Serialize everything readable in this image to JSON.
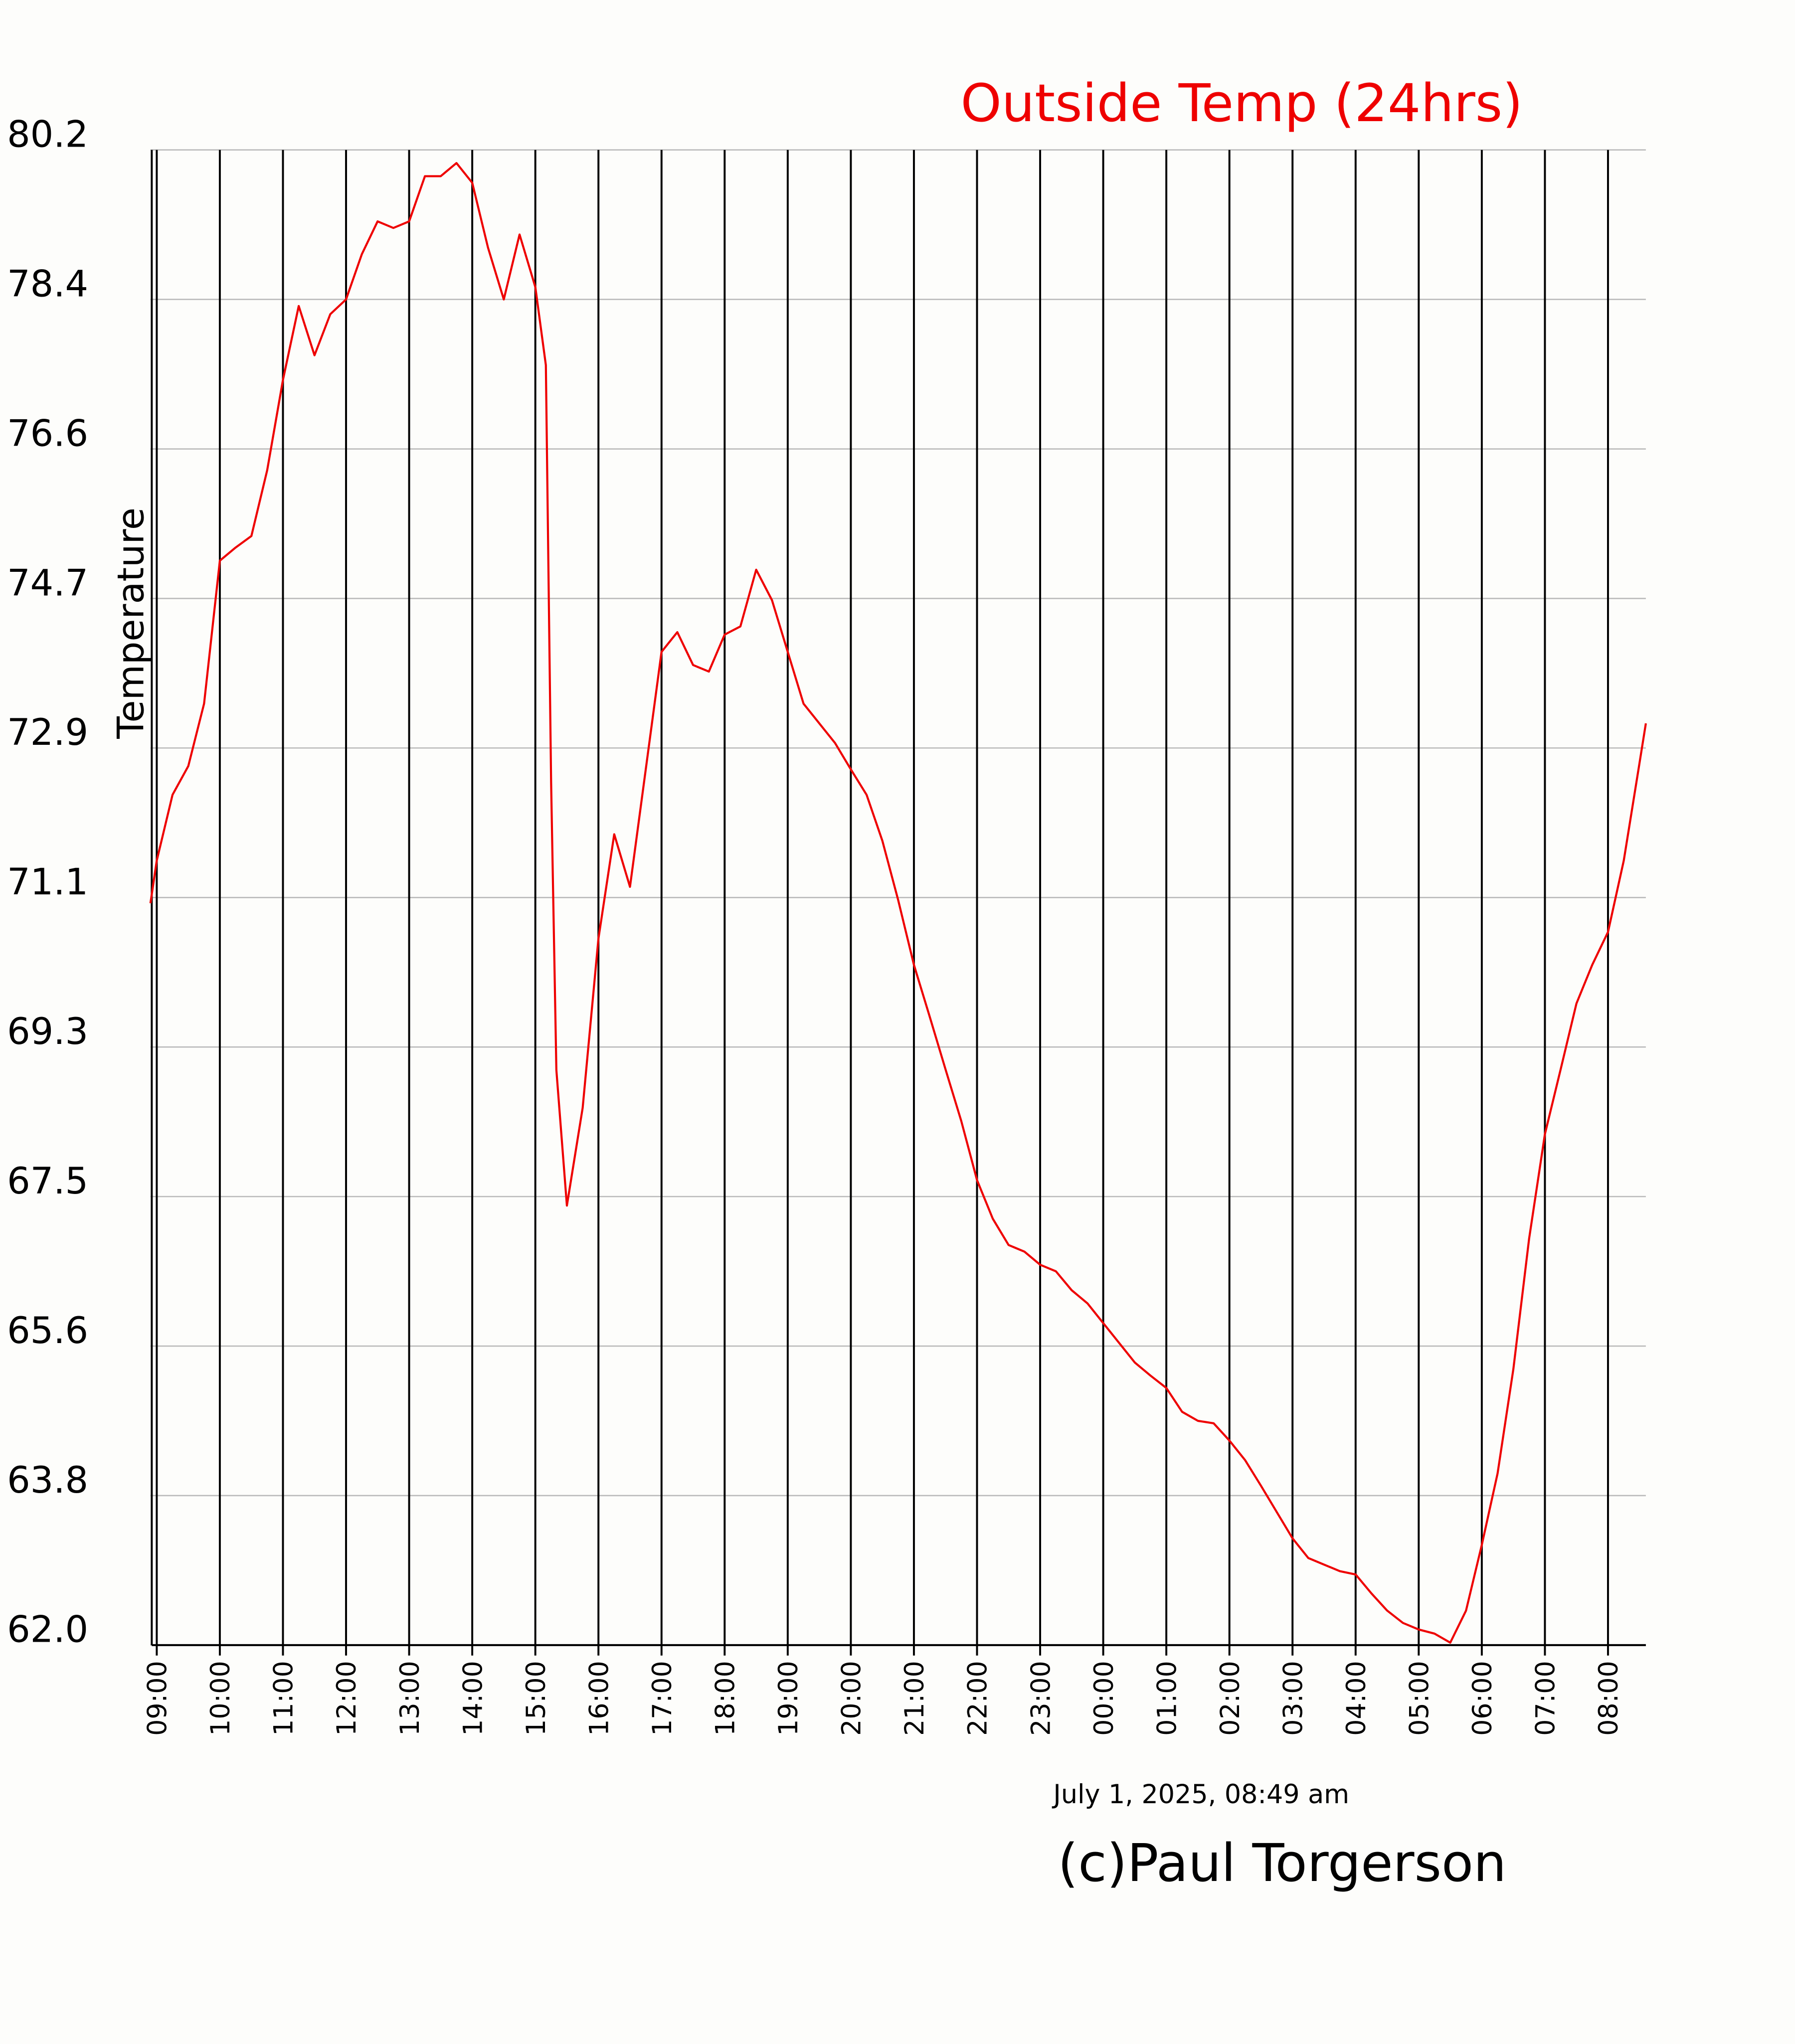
{
  "chart_data": {
    "type": "line",
    "title": "Outside Temp (24hrs)",
    "y_label": "Temperature",
    "annotations": [
      "July 1, 2025, 08:49 am",
      "(c)Paul Torgerson"
    ],
    "color": "#ee0000",
    "grid": true,
    "x": [
      "08:54",
      "09:00",
      "09:15",
      "09:30",
      "09:45",
      "10:00",
      "10:15",
      "10:30",
      "10:45",
      "11:00",
      "11:15",
      "11:30",
      "11:45",
      "12:00",
      "12:15",
      "12:30",
      "12:45",
      "13:00",
      "13:15",
      "13:30",
      "13:45",
      "14:00",
      "14:15",
      "14:30",
      "14:45",
      "15:00",
      "15:10",
      "15:15",
      "15:20",
      "15:30",
      "15:45",
      "16:00",
      "16:15",
      "16:30",
      "16:45",
      "17:00",
      "17:15",
      "17:30",
      "17:45",
      "18:00",
      "18:15",
      "18:30",
      "18:45",
      "19:00",
      "19:15",
      "19:30",
      "19:45",
      "20:00",
      "20:15",
      "20:30",
      "20:45",
      "21:00",
      "21:15",
      "21:30",
      "21:45",
      "22:00",
      "22:15",
      "22:30",
      "22:45",
      "23:00",
      "23:15",
      "23:30",
      "23:45",
      "00:00",
      "00:15",
      "00:30",
      "00:45",
      "01:00",
      "01:15",
      "01:30",
      "01:45",
      "02:00",
      "02:15",
      "02:30",
      "02:45",
      "03:00",
      "03:15",
      "03:30",
      "03:45",
      "04:00",
      "04:15",
      "04:30",
      "04:45",
      "05:00",
      "05:15",
      "05:30",
      "05:45",
      "06:00",
      "06:15",
      "06:30",
      "06:45",
      "07:00",
      "07:15",
      "07:30",
      "07:45",
      "08:00",
      "08:15",
      "08:30",
      "08:36"
    ],
    "values": [
      71.03,
      71.55,
      72.35,
      72.7,
      73.46,
      75.2,
      75.36,
      75.5,
      76.3,
      77.4,
      78.3,
      77.7,
      78.2,
      78.38,
      78.93,
      79.33,
      79.25,
      79.33,
      79.88,
      79.88,
      80.04,
      79.8,
      79.01,
      78.38,
      79.17,
      78.53,
      77.58,
      72.5,
      69.0,
      67.35,
      68.54,
      70.6,
      71.87,
      71.23,
      72.66,
      74.09,
      74.33,
      73.93,
      73.85,
      74.3,
      74.4,
      75.09,
      74.72,
      74.09,
      73.46,
      73.22,
      72.98,
      72.66,
      72.35,
      71.79,
      71.07,
      70.28,
      69.65,
      69.01,
      68.38,
      67.66,
      67.19,
      66.87,
      66.79,
      66.63,
      66.55,
      66.32,
      66.16,
      65.92,
      65.68,
      65.44,
      65.28,
      65.13,
      64.84,
      64.73,
      64.7,
      64.49,
      64.25,
      63.94,
      63.62,
      63.3,
      63.06,
      62.98,
      62.9,
      62.86,
      62.63,
      62.42,
      62.27,
      62.19,
      62.14,
      62.03,
      62.42,
      63.22,
      64.09,
      65.36,
      66.95,
      68.22,
      69.01,
      69.81,
      70.28,
      70.68,
      71.55,
      72.74,
      73.22
    ],
    "xlim": [
      "08:54",
      "08:36"
    ],
    "xticks": [
      "09:00",
      "10:00",
      "11:00",
      "12:00",
      "13:00",
      "14:00",
      "15:00",
      "16:00",
      "17:00",
      "18:00",
      "19:00",
      "20:00",
      "21:00",
      "22:00",
      "23:00",
      "00:00",
      "01:00",
      "02:00",
      "03:00",
      "04:00",
      "05:00",
      "06:00",
      "07:00",
      "08:00"
    ],
    "ylim": [
      62,
      80.2
    ],
    "yticks": [
      {
        "value": 62,
        "label": "62.0"
      },
      {
        "value": 63.82,
        "label": "63.8"
      },
      {
        "value": 65.64,
        "label": "65.6"
      },
      {
        "value": 67.46,
        "label": "67.5"
      },
      {
        "value": 69.28,
        "label": "69.3"
      },
      {
        "value": 71.1,
        "label": "71.1"
      },
      {
        "value": 72.92,
        "label": "72.9"
      },
      {
        "value": 74.74,
        "label": "74.7"
      },
      {
        "value": 76.56,
        "label": "76.6"
      },
      {
        "value": 78.38,
        "label": "78.4"
      },
      80.2
    ]
  }
}
